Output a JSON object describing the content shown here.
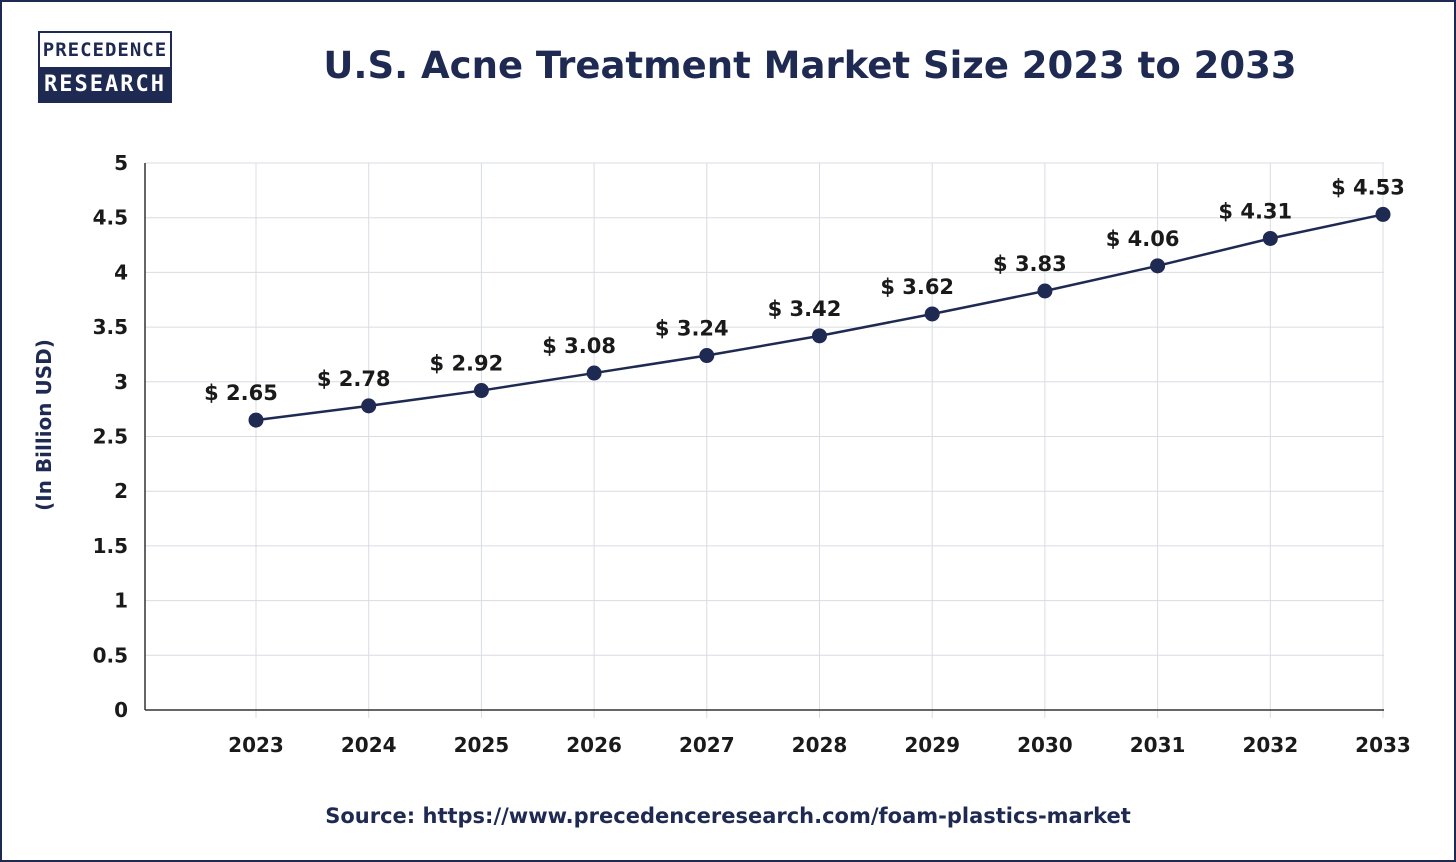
{
  "logo": {
    "line1": "PRECEDENCE",
    "line2": "RESEARCH"
  },
  "source": "Source: https://www.precedenceresearch.com/foam-plastics-market",
  "colors": {
    "navy": "#1f2a52",
    "grid": "#d9dce3",
    "marker": "#1f2a52"
  },
  "chart_data": {
    "type": "line",
    "title": "U.S. Acne Treatment Market Size 2023 to 2033",
    "xlabel": "",
    "ylabel": "(In Billion USD)",
    "categories": [
      "2023",
      "2024",
      "2025",
      "2026",
      "2027",
      "2028",
      "2029",
      "2030",
      "2031",
      "2032",
      "2033"
    ],
    "series": [
      {
        "values": [
          2.65,
          2.78,
          2.92,
          3.08,
          3.24,
          3.42,
          3.62,
          3.83,
          4.06,
          4.31,
          4.53
        ]
      }
    ],
    "data_labels": [
      "$ 2.65",
      "$ 2.78",
      "$ 2.92",
      "$ 3.08",
      "$ 3.24",
      "$ 3.42",
      "$ 3.62",
      "$ 3.83",
      "$ 4.06",
      "$ 4.31",
      "$ 4.53"
    ],
    "yticks": [
      "0",
      "0.5",
      "1",
      "1.5",
      "2",
      "2.5",
      "3",
      "3.5",
      "4",
      "4.5",
      "5"
    ],
    "ylim": [
      0,
      5
    ],
    "grid": true,
    "legend": "none"
  }
}
